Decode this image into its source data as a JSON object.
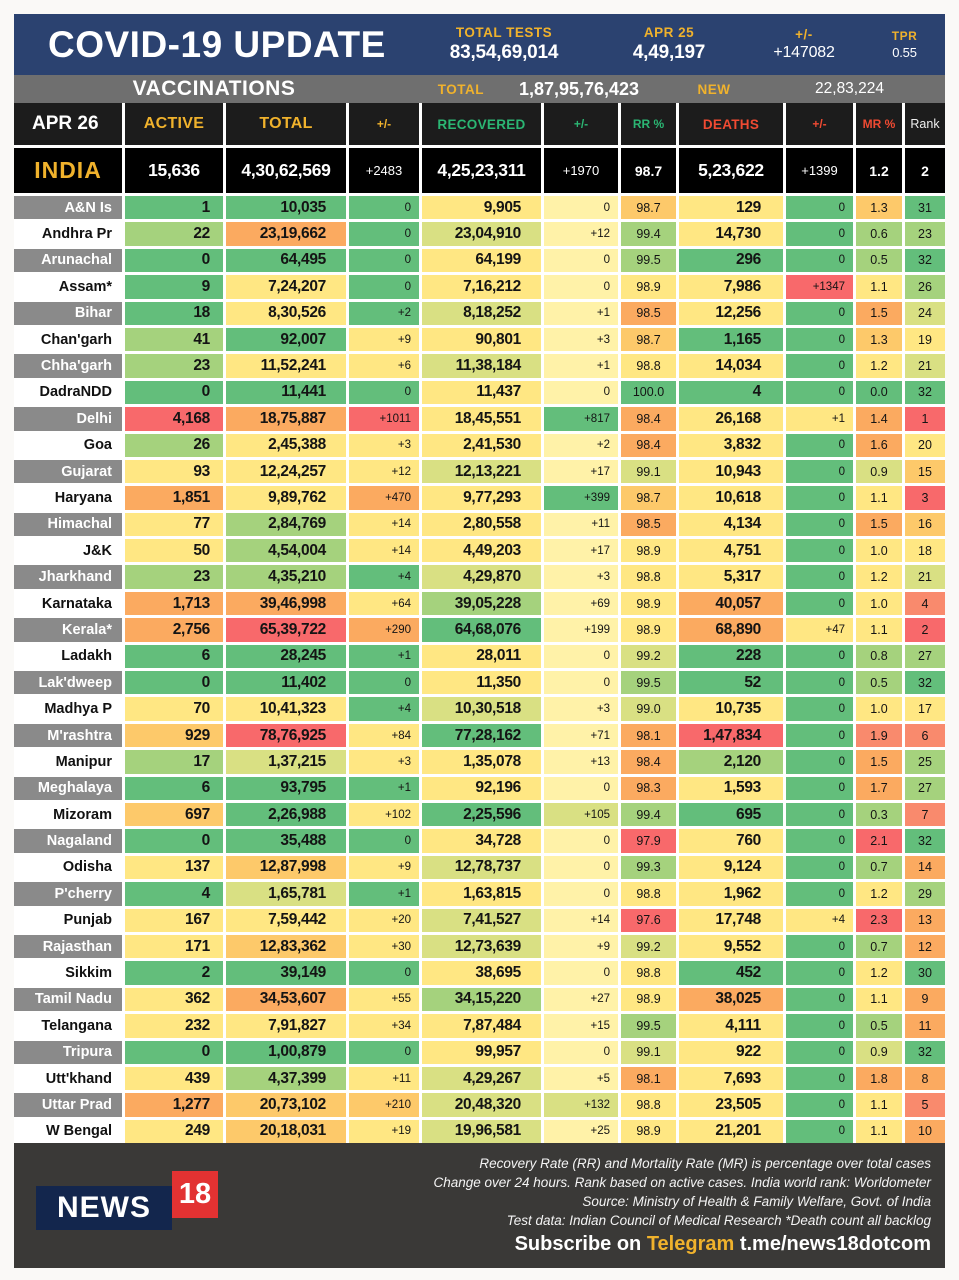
{
  "header": {
    "title": "COVID-19 UPDATE",
    "stats": [
      {
        "label": "TOTAL TESTS",
        "value": "83,54,69,014"
      },
      {
        "label": "APR 25",
        "value": "4,49,197"
      },
      {
        "label": "+/-",
        "value": "+147082"
      },
      {
        "label": "TPR",
        "value": "0.55"
      }
    ]
  },
  "vaccinations": {
    "title": "VACCINATIONS",
    "total_label": "TOTAL",
    "total_value": "1,87,95,76,423",
    "new_label": "NEW",
    "new_value": "22,83,224"
  },
  "chart_data": {
    "type": "table",
    "title": "COVID-19 UPDATE",
    "date": "APR 26",
    "columns": [
      "APR 26",
      "ACTIVE",
      "TOTAL",
      "+/-",
      "RECOVERED",
      "+/-",
      "RR %",
      "DEATHS",
      "+/-",
      "MR %",
      "Rank"
    ],
    "india": {
      "name": "INDIA",
      "values": [
        "15,636",
        "4,30,62,569",
        "+2483",
        "4,25,23,311",
        "+1970",
        "98.7",
        "5,23,622",
        "+1399",
        "1.2",
        "2"
      ]
    },
    "rows": [
      {
        "name": "A&N Is",
        "label_style": "gray",
        "values": [
          "1",
          "10,035",
          "0",
          "9,905",
          "0",
          "98.7",
          "129",
          "0",
          "1.3",
          "31"
        ],
        "colors": [
          "g",
          "g",
          "g",
          "y",
          "py",
          "yo",
          "y",
          "g",
          "yo",
          "g"
        ]
      },
      {
        "name": "Andhra Pr",
        "label_style": "white",
        "values": [
          "22",
          "23,19,662",
          "0",
          "23,04,910",
          "+12",
          "99.4",
          "14,730",
          "0",
          "0.6",
          "23"
        ],
        "colors": [
          "lg",
          "o",
          "g",
          "yg",
          "py",
          "lg",
          "y",
          "g",
          "lg",
          "lg"
        ]
      },
      {
        "name": "Arunachal",
        "label_style": "gray",
        "values": [
          "0",
          "64,495",
          "0",
          "64,199",
          "0",
          "99.5",
          "296",
          "0",
          "0.5",
          "32"
        ],
        "colors": [
          "g",
          "g",
          "g",
          "y",
          "py",
          "lg",
          "g",
          "g",
          "lg",
          "g"
        ]
      },
      {
        "name": "Assam*",
        "label_style": "white",
        "values": [
          "9",
          "7,24,207",
          "0",
          "7,16,212",
          "0",
          "98.9",
          "7,986",
          "+1347",
          "1.1",
          "26"
        ],
        "colors": [
          "g",
          "y",
          "g",
          "y",
          "py",
          "y",
          "y",
          "r",
          "y",
          "lg"
        ]
      },
      {
        "name": "Bihar",
        "label_style": "gray",
        "values": [
          "18",
          "8,30,526",
          "+2",
          "8,18,252",
          "+1",
          "98.5",
          "12,256",
          "0",
          "1.5",
          "24"
        ],
        "colors": [
          "g",
          "y",
          "g",
          "yg",
          "py",
          "o",
          "y",
          "g",
          "o",
          "yg"
        ]
      },
      {
        "name": "Chan'garh",
        "label_style": "white",
        "values": [
          "41",
          "92,007",
          "+9",
          "90,801",
          "+3",
          "98.7",
          "1,165",
          "0",
          "1.3",
          "19"
        ],
        "colors": [
          "lg",
          "g",
          "y",
          "y",
          "py",
          "yo",
          "g",
          "g",
          "yo",
          "y"
        ]
      },
      {
        "name": "Chha'garh",
        "label_style": "gray",
        "values": [
          "23",
          "11,52,241",
          "+6",
          "11,38,184",
          "+1",
          "98.8",
          "14,034",
          "0",
          "1.2",
          "21"
        ],
        "colors": [
          "lg",
          "y",
          "y",
          "yg",
          "py",
          "y",
          "y",
          "g",
          "y",
          "yg"
        ]
      },
      {
        "name": "DadraNDD",
        "label_style": "white",
        "values": [
          "0",
          "11,441",
          "0",
          "11,437",
          "0",
          "100.0",
          "4",
          "0",
          "0.0",
          "32"
        ],
        "colors": [
          "g",
          "g",
          "g",
          "y",
          "py",
          "g",
          "g",
          "g",
          "g",
          "g"
        ]
      },
      {
        "name": "Delhi",
        "label_style": "gray",
        "values": [
          "4,168",
          "18,75,887",
          "+1011",
          "18,45,551",
          "+817",
          "98.4",
          "26,168",
          "+1",
          "1.4",
          "1"
        ],
        "colors": [
          "r",
          "o",
          "r",
          "y",
          "g",
          "o",
          "y",
          "y",
          "o",
          "r"
        ]
      },
      {
        "name": "Goa",
        "label_style": "white",
        "values": [
          "26",
          "2,45,388",
          "+3",
          "2,41,530",
          "+2",
          "98.4",
          "3,832",
          "0",
          "1.6",
          "20"
        ],
        "colors": [
          "lg",
          "y",
          "y",
          "y",
          "py",
          "o",
          "y",
          "g",
          "o",
          "y"
        ]
      },
      {
        "name": "Gujarat",
        "label_style": "gray",
        "values": [
          "93",
          "12,24,257",
          "+12",
          "12,13,221",
          "+17",
          "99.1",
          "10,943",
          "0",
          "0.9",
          "15"
        ],
        "colors": [
          "y",
          "y",
          "y",
          "yg",
          "py",
          "yg",
          "y",
          "g",
          "yg",
          "yo"
        ]
      },
      {
        "name": "Haryana",
        "label_style": "white",
        "values": [
          "1,851",
          "9,89,762",
          "+470",
          "9,77,293",
          "+399",
          "98.7",
          "10,618",
          "0",
          "1.1",
          "3"
        ],
        "colors": [
          "o",
          "y",
          "o",
          "y",
          "g",
          "yo",
          "y",
          "g",
          "y",
          "r"
        ]
      },
      {
        "name": "Himachal",
        "label_style": "gray",
        "values": [
          "77",
          "2,84,769",
          "+14",
          "2,80,558",
          "+11",
          "98.5",
          "4,134",
          "0",
          "1.5",
          "16"
        ],
        "colors": [
          "y",
          "lg",
          "y",
          "y",
          "py",
          "o",
          "y",
          "g",
          "o",
          "yo"
        ]
      },
      {
        "name": "J&K",
        "label_style": "white",
        "values": [
          "50",
          "4,54,004",
          "+14",
          "4,49,203",
          "+17",
          "98.9",
          "4,751",
          "0",
          "1.0",
          "18"
        ],
        "colors": [
          "y",
          "lg",
          "y",
          "y",
          "py",
          "y",
          "y",
          "g",
          "y",
          "y"
        ]
      },
      {
        "name": "Jharkhand",
        "label_style": "gray",
        "values": [
          "23",
          "4,35,210",
          "+4",
          "4,29,870",
          "+3",
          "98.8",
          "5,317",
          "0",
          "1.2",
          "21"
        ],
        "colors": [
          "lg",
          "lg",
          "g",
          "yg",
          "py",
          "y",
          "y",
          "g",
          "y",
          "yg"
        ]
      },
      {
        "name": "Karnataka",
        "label_style": "white",
        "values": [
          "1,713",
          "39,46,998",
          "+64",
          "39,05,228",
          "+69",
          "98.9",
          "40,057",
          "0",
          "1.0",
          "4"
        ],
        "colors": [
          "o",
          "o",
          "y",
          "lg",
          "py",
          "y",
          "o",
          "g",
          "y",
          "ro"
        ]
      },
      {
        "name": "Kerala*",
        "label_style": "gray",
        "values": [
          "2,756",
          "65,39,722",
          "+290",
          "64,68,076",
          "+199",
          "98.9",
          "68,890",
          "+47",
          "1.1",
          "2"
        ],
        "colors": [
          "o",
          "r",
          "o",
          "g",
          "py",
          "y",
          "o",
          "y",
          "y",
          "r"
        ]
      },
      {
        "name": "Ladakh",
        "label_style": "white",
        "values": [
          "6",
          "28,245",
          "+1",
          "28,011",
          "0",
          "99.2",
          "228",
          "0",
          "0.8",
          "27"
        ],
        "colors": [
          "g",
          "g",
          "g",
          "y",
          "py",
          "yg",
          "g",
          "g",
          "lg",
          "lg"
        ]
      },
      {
        "name": "Lak'dweep",
        "label_style": "gray",
        "values": [
          "0",
          "11,402",
          "0",
          "11,350",
          "0",
          "99.5",
          "52",
          "0",
          "0.5",
          "32"
        ],
        "colors": [
          "g",
          "g",
          "g",
          "y",
          "py",
          "lg",
          "g",
          "g",
          "lg",
          "g"
        ]
      },
      {
        "name": "Madhya P",
        "label_style": "white",
        "values": [
          "70",
          "10,41,323",
          "+4",
          "10,30,518",
          "+3",
          "99.0",
          "10,735",
          "0",
          "1.0",
          "17"
        ],
        "colors": [
          "y",
          "y",
          "g",
          "yg",
          "py",
          "yg",
          "y",
          "g",
          "y",
          "y"
        ]
      },
      {
        "name": "M'rashtra",
        "label_style": "gray",
        "values": [
          "929",
          "78,76,925",
          "+84",
          "77,28,162",
          "+71",
          "98.1",
          "1,47,834",
          "0",
          "1.9",
          "6"
        ],
        "colors": [
          "yo",
          "r",
          "y",
          "g",
          "py",
          "o",
          "r",
          "g",
          "ro",
          "ro"
        ]
      },
      {
        "name": "Manipur",
        "label_style": "white",
        "values": [
          "17",
          "1,37,215",
          "+3",
          "1,35,078",
          "+13",
          "98.4",
          "2,120",
          "0",
          "1.5",
          "25"
        ],
        "colors": [
          "lg",
          "yg",
          "y",
          "y",
          "py",
          "o",
          "lg",
          "g",
          "o",
          "lg"
        ]
      },
      {
        "name": "Meghalaya",
        "label_style": "gray",
        "values": [
          "6",
          "93,795",
          "+1",
          "92,196",
          "0",
          "98.3",
          "1,593",
          "0",
          "1.7",
          "27"
        ],
        "colors": [
          "g",
          "g",
          "g",
          "y",
          "py",
          "o",
          "y",
          "g",
          "o",
          "lg"
        ]
      },
      {
        "name": "Mizoram",
        "label_style": "white",
        "values": [
          "697",
          "2,26,988",
          "+102",
          "2,25,596",
          "+105",
          "99.4",
          "695",
          "0",
          "0.3",
          "7"
        ],
        "colors": [
          "yo",
          "g",
          "y",
          "g",
          "yg",
          "lg",
          "g",
          "g",
          "lg",
          "ro"
        ]
      },
      {
        "name": "Nagaland",
        "label_style": "gray",
        "values": [
          "0",
          "35,488",
          "0",
          "34,728",
          "0",
          "97.9",
          "760",
          "0",
          "2.1",
          "32"
        ],
        "colors": [
          "g",
          "g",
          "g",
          "y",
          "py",
          "r",
          "y",
          "g",
          "r",
          "g"
        ]
      },
      {
        "name": "Odisha",
        "label_style": "white",
        "values": [
          "137",
          "12,87,998",
          "+9",
          "12,78,737",
          "0",
          "99.3",
          "9,124",
          "0",
          "0.7",
          "14"
        ],
        "colors": [
          "y",
          "yo",
          "y",
          "yg",
          "py",
          "lg",
          "y",
          "g",
          "lg",
          "o"
        ]
      },
      {
        "name": "P'cherry",
        "label_style": "gray",
        "values": [
          "4",
          "1,65,781",
          "+1",
          "1,63,815",
          "0",
          "98.8",
          "1,962",
          "0",
          "1.2",
          "29"
        ],
        "colors": [
          "g",
          "yg",
          "g",
          "y",
          "py",
          "y",
          "y",
          "g",
          "y",
          "lg"
        ]
      },
      {
        "name": "Punjab",
        "label_style": "white",
        "values": [
          "167",
          "7,59,442",
          "+20",
          "7,41,527",
          "+14",
          "97.6",
          "17,748",
          "+4",
          "2.3",
          "13"
        ],
        "colors": [
          "y",
          "y",
          "y",
          "yg",
          "py",
          "r",
          "y",
          "y",
          "r",
          "o"
        ]
      },
      {
        "name": "Rajasthan",
        "label_style": "gray",
        "values": [
          "171",
          "12,83,362",
          "+30",
          "12,73,639",
          "+9",
          "99.2",
          "9,552",
          "0",
          "0.7",
          "12"
        ],
        "colors": [
          "y",
          "yo",
          "y",
          "yg",
          "py",
          "yg",
          "y",
          "g",
          "lg",
          "o"
        ]
      },
      {
        "name": "Sikkim",
        "label_style": "white",
        "values": [
          "2",
          "39,149",
          "0",
          "38,695",
          "0",
          "98.8",
          "452",
          "0",
          "1.2",
          "30"
        ],
        "colors": [
          "g",
          "g",
          "g",
          "y",
          "py",
          "y",
          "g",
          "g",
          "y",
          "g"
        ]
      },
      {
        "name": "Tamil Nadu",
        "label_style": "gray",
        "values": [
          "362",
          "34,53,607",
          "+55",
          "34,15,220",
          "+27",
          "98.9",
          "38,025",
          "0",
          "1.1",
          "9"
        ],
        "colors": [
          "y",
          "o",
          "y",
          "lg",
          "py",
          "y",
          "o",
          "g",
          "y",
          "o"
        ]
      },
      {
        "name": "Telangana",
        "label_style": "white",
        "values": [
          "232",
          "7,91,827",
          "+34",
          "7,87,484",
          "+15",
          "99.5",
          "4,111",
          "0",
          "0.5",
          "11"
        ],
        "colors": [
          "y",
          "y",
          "y",
          "y",
          "py",
          "lg",
          "y",
          "g",
          "lg",
          "o"
        ]
      },
      {
        "name": "Tripura",
        "label_style": "gray",
        "values": [
          "0",
          "1,00,879",
          "0",
          "99,957",
          "0",
          "99.1",
          "922",
          "0",
          "0.9",
          "32"
        ],
        "colors": [
          "g",
          "g",
          "g",
          "y",
          "py",
          "yg",
          "y",
          "g",
          "yg",
          "g"
        ]
      },
      {
        "name": "Utt'khand",
        "label_style": "white",
        "values": [
          "439",
          "4,37,399",
          "+11",
          "4,29,267",
          "+5",
          "98.1",
          "7,693",
          "0",
          "1.8",
          "8"
        ],
        "colors": [
          "y",
          "lg",
          "y",
          "yg",
          "py",
          "o",
          "y",
          "g",
          "o",
          "o"
        ]
      },
      {
        "name": "Uttar Prad",
        "label_style": "gray",
        "values": [
          "1,277",
          "20,73,102",
          "+210",
          "20,48,320",
          "+132",
          "98.8",
          "23,505",
          "0",
          "1.1",
          "5"
        ],
        "colors": [
          "o",
          "yo",
          "yo",
          "yg",
          "yg",
          "y",
          "y",
          "g",
          "y",
          "ro"
        ]
      },
      {
        "name": "W Bengal",
        "label_style": "white",
        "values": [
          "249",
          "20,18,031",
          "+19",
          "19,96,581",
          "+25",
          "98.9",
          "21,201",
          "0",
          "1.1",
          "10"
        ],
        "colors": [
          "y",
          "yo",
          "y",
          "yg",
          "py",
          "y",
          "y",
          "g",
          "y",
          "o"
        ]
      }
    ]
  },
  "footer": {
    "notes": [
      "Recovery Rate (RR) and Mortality Rate (MR) is percentage over total cases",
      "Change over 24 hours. Rank based on active cases. India world rank: Worldometer",
      "Source: Ministry of Health & Family Welfare, Govt. of India",
      "Test data: Indian Council of Medical Research *Death count all backlog"
    ],
    "subscribe": {
      "prefix": "Subscribe on ",
      "brand": "Telegram",
      "handle": " t.me/news18dotcom"
    },
    "logo": {
      "text": "NEWS",
      "number": "18"
    }
  },
  "palette": {
    "g": "#63be7b",
    "lg": "#a5d27d",
    "yg": "#d9e083",
    "y": "#ffe783",
    "py": "#fff2a8",
    "yo": "#fdc96a",
    "o": "#fbaa60",
    "ro": "#f98a6d",
    "r": "#f8696b",
    "gold": "#f0b22c",
    "navy": "#2b4270",
    "header_green": "#2bb673",
    "header_red": "#f04a32",
    "label_gray": "#8a8a8a",
    "footer_dark": "#3a3937",
    "logo_navy": "#13264d",
    "logo_red": "#e23232"
  }
}
